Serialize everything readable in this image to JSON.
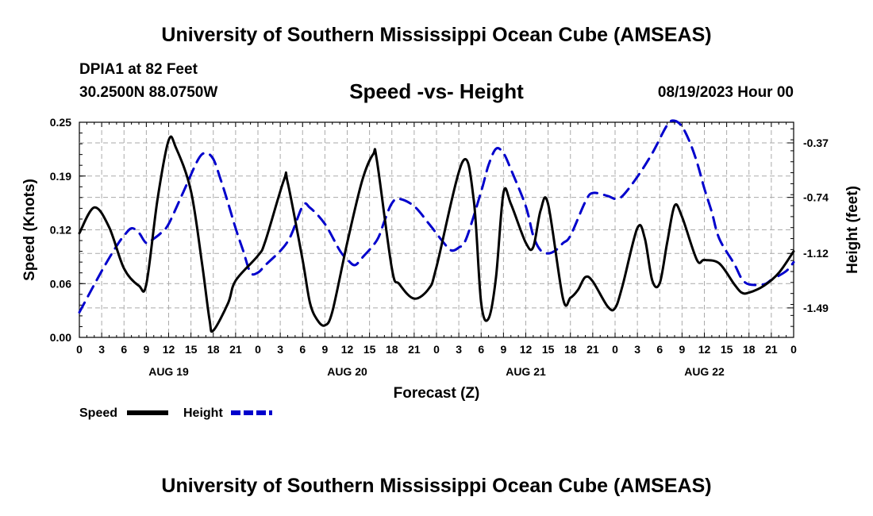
{
  "header": {
    "title": "University of Southern Mississippi Ocean Cube (AMSEAS)",
    "station": "DPIA1 at 82 Feet",
    "coords": "30.2500N  88.0750W",
    "date": "08/19/2023 Hour 00"
  },
  "footer": {
    "title": "University of Southern Mississippi Ocean Cube (AMSEAS)"
  },
  "chart_data": {
    "type": "line",
    "title": "Speed -vs- Height",
    "xlabel": "Forecast (Z)",
    "ylabel": "Speed (Knots)",
    "y2label": "Height (feet)",
    "x_unit": "hours from 08/19 00Z",
    "xlim": [
      0,
      96
    ],
    "ylim": [
      0,
      0.25
    ],
    "y2lim": [
      -1.69,
      -0.23
    ],
    "y_ticks": [
      "0.00",
      "0.06",
      "0.12",
      "0.19",
      "0.25"
    ],
    "y2_ticks": [
      "-0.37",
      "-0.74",
      "-1.12",
      "-1.49"
    ],
    "x_tick_labels": [
      "0",
      "3",
      "6",
      "9",
      "12",
      "15",
      "18",
      "21",
      "0",
      "3",
      "6",
      "9",
      "12",
      "15",
      "18",
      "21",
      "0",
      "3",
      "6",
      "9",
      "12",
      "15",
      "18",
      "21",
      "0",
      "3",
      "6",
      "9",
      "12",
      "15",
      "18",
      "21",
      "0"
    ],
    "day_labels": [
      {
        "label": "AUG 19",
        "hour": 12
      },
      {
        "label": "AUG 20",
        "hour": 36
      },
      {
        "label": "AUG 21",
        "hour": 60
      },
      {
        "label": "AUG 22",
        "hour": 84
      }
    ],
    "series": [
      {
        "name": "Speed",
        "axis": "left",
        "color": "#000000",
        "dash": "solid",
        "points": [
          [
            0,
            0.121
          ],
          [
            2,
            0.151
          ],
          [
            4,
            0.128
          ],
          [
            6,
            0.08
          ],
          [
            8,
            0.06
          ],
          [
            9,
            0.062
          ],
          [
            10.5,
            0.16
          ],
          [
            12,
            0.229
          ],
          [
            13,
            0.22
          ],
          [
            15,
            0.17
          ],
          [
            16.5,
            0.085
          ],
          [
            17.5,
            0.02
          ],
          [
            18,
            0.008
          ],
          [
            20,
            0.04
          ],
          [
            21,
            0.066
          ],
          [
            24,
            0.095
          ],
          [
            25,
            0.112
          ],
          [
            27.5,
            0.183
          ],
          [
            28,
            0.18
          ],
          [
            30,
            0.09
          ],
          [
            31,
            0.04
          ],
          [
            32,
            0.02
          ],
          [
            33,
            0.014
          ],
          [
            34,
            0.03
          ],
          [
            36,
            0.11
          ],
          [
            38,
            0.182
          ],
          [
            39.5,
            0.213
          ],
          [
            40,
            0.205
          ],
          [
            42,
            0.08
          ],
          [
            43,
            0.062
          ],
          [
            45,
            0.045
          ],
          [
            47,
            0.057
          ],
          [
            48,
            0.082
          ],
          [
            51.5,
            0.204
          ],
          [
            53,
            0.16
          ],
          [
            54,
            0.04
          ],
          [
            55,
            0.022
          ],
          [
            56,
            0.07
          ],
          [
            57,
            0.168
          ],
          [
            58,
            0.155
          ],
          [
            60,
            0.11
          ],
          [
            61,
            0.105
          ],
          [
            62,
            0.148
          ],
          [
            63,
            0.155
          ],
          [
            65,
            0.045
          ],
          [
            66,
            0.046
          ],
          [
            67,
            0.055
          ],
          [
            68,
            0.07
          ],
          [
            69,
            0.065
          ],
          [
            71,
            0.036
          ],
          [
            72,
            0.034
          ],
          [
            73,
            0.06
          ],
          [
            75,
            0.127
          ],
          [
            76,
            0.115
          ],
          [
            77,
            0.066
          ],
          [
            78,
            0.063
          ],
          [
            79,
            0.11
          ],
          [
            80,
            0.153
          ],
          [
            81,
            0.14
          ],
          [
            83,
            0.09
          ],
          [
            84,
            0.09
          ],
          [
            86,
            0.086
          ],
          [
            88,
            0.062
          ],
          [
            89,
            0.052
          ],
          [
            90,
            0.052
          ],
          [
            92,
            0.06
          ],
          [
            94,
            0.075
          ],
          [
            96,
            0.1
          ]
        ]
      },
      {
        "name": "Height",
        "axis": "right",
        "color": "#0000cc",
        "dash": "dashed",
        "points": [
          [
            0,
            -1.52
          ],
          [
            3,
            -1.24
          ],
          [
            5,
            -1.07
          ],
          [
            6,
            -1.0
          ],
          [
            7,
            -0.95
          ],
          [
            8,
            -0.98
          ],
          [
            9,
            -1.05
          ],
          [
            10,
            -1.02
          ],
          [
            11,
            -0.98
          ],
          [
            12,
            -0.92
          ],
          [
            14,
            -0.7
          ],
          [
            16,
            -0.48
          ],
          [
            17,
            -0.44
          ],
          [
            18,
            -0.48
          ],
          [
            19,
            -0.62
          ],
          [
            20,
            -0.78
          ],
          [
            21,
            -0.95
          ],
          [
            22,
            -1.1
          ],
          [
            23,
            -1.25
          ],
          [
            24,
            -1.25
          ],
          [
            25,
            -1.2
          ],
          [
            28,
            -1.04
          ],
          [
            30,
            -0.8
          ],
          [
            31,
            -0.81
          ],
          [
            33,
            -0.92
          ],
          [
            35,
            -1.1
          ],
          [
            36,
            -1.16
          ],
          [
            37,
            -1.2
          ],
          [
            38,
            -1.15
          ],
          [
            40,
            -1.03
          ],
          [
            41,
            -0.9
          ],
          [
            42,
            -0.78
          ],
          [
            43,
            -0.75
          ],
          [
            45,
            -0.8
          ],
          [
            47,
            -0.92
          ],
          [
            49,
            -1.05
          ],
          [
            50,
            -1.1
          ],
          [
            51,
            -1.08
          ],
          [
            52,
            -1.02
          ],
          [
            54,
            -0.7
          ],
          [
            55,
            -0.52
          ],
          [
            56,
            -0.41
          ],
          [
            57,
            -0.44
          ],
          [
            58,
            -0.55
          ],
          [
            60,
            -0.8
          ],
          [
            61,
            -1.0
          ],
          [
            62,
            -1.1
          ],
          [
            63,
            -1.12
          ],
          [
            64,
            -1.1
          ],
          [
            65,
            -1.05
          ],
          [
            66,
            -1.0
          ],
          [
            68,
            -0.77
          ],
          [
            69,
            -0.71
          ],
          [
            71,
            -0.73
          ],
          [
            72,
            -0.75
          ],
          [
            73,
            -0.73
          ],
          [
            75,
            -0.6
          ],
          [
            77,
            -0.44
          ],
          [
            79,
            -0.25
          ],
          [
            80,
            -0.22
          ],
          [
            81,
            -0.26
          ],
          [
            82,
            -0.36
          ],
          [
            83,
            -0.5
          ],
          [
            84,
            -0.68
          ],
          [
            85,
            -0.84
          ],
          [
            86,
            -1.02
          ],
          [
            88,
            -1.19
          ],
          [
            89,
            -1.29
          ],
          [
            90,
            -1.33
          ],
          [
            92,
            -1.33
          ],
          [
            93,
            -1.3
          ],
          [
            95,
            -1.24
          ],
          [
            96,
            -1.18
          ]
        ]
      }
    ],
    "legend": [
      {
        "label": "Speed",
        "color": "#000000",
        "dash": "solid"
      },
      {
        "label": "Height",
        "color": "#0000cc",
        "dash": "dashed"
      }
    ]
  }
}
